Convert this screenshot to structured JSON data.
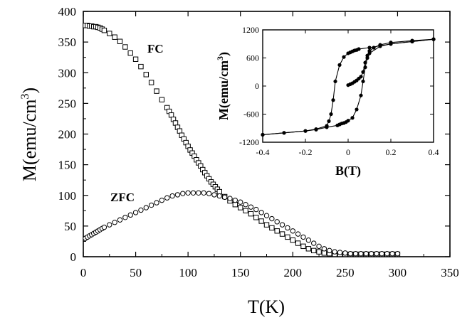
{
  "chart_data": [
    {
      "type": "scatter",
      "xlabel": "T(K)",
      "ylabel": "M(emu/cm³)",
      "xlim": [
        0,
        350
      ],
      "ylim": [
        0,
        400
      ],
      "x_ticks": [
        "0",
        "50",
        "100",
        "150",
        "200",
        "250",
        "300",
        "350"
      ],
      "y_ticks": [
        "0",
        "50",
        "100",
        "150",
        "200",
        "250",
        "300",
        "350",
        "400"
      ],
      "grid": false,
      "series": [
        {
          "name": "FC",
          "marker": "open-square",
          "x": [
            2,
            4,
            6,
            8,
            10,
            12,
            14,
            16,
            18,
            20,
            25,
            30,
            35,
            40,
            45,
            50,
            55,
            60,
            65,
            70,
            75,
            80,
            82,
            84,
            86,
            88,
            90,
            92,
            94,
            96,
            98,
            100,
            102,
            104,
            106,
            108,
            110,
            112,
            114,
            116,
            118,
            120,
            122,
            124,
            126,
            128,
            130,
            135,
            140,
            145,
            150,
            155,
            160,
            165,
            170,
            175,
            180,
            185,
            190,
            195,
            200,
            205,
            210,
            215,
            220,
            225,
            230,
            235,
            240,
            245,
            250,
            255,
            260,
            265,
            270,
            275,
            280,
            285,
            290,
            295,
            300
          ],
          "values": [
            377,
            377,
            376,
            376,
            375,
            375,
            374,
            373,
            371,
            369,
            364,
            358,
            351,
            342,
            332,
            322,
            310,
            297,
            284,
            270,
            256,
            243,
            237,
            231,
            224,
            218,
            211,
            205,
            198,
            192,
            186,
            180,
            174,
            169,
            164,
            158,
            153,
            148,
            142,
            137,
            132,
            127,
            122,
            118,
            114,
            110,
            106,
            98,
            91,
            85,
            80,
            75,
            70,
            64,
            58,
            52,
            47,
            42,
            37,
            32,
            27,
            22,
            17,
            13,
            10,
            8,
            6,
            5,
            4,
            4,
            4,
            4,
            4,
            4,
            4,
            4,
            4,
            4,
            4,
            4,
            4
          ]
        },
        {
          "name": "ZFC",
          "marker": "open-circle",
          "x": [
            2,
            4,
            6,
            8,
            10,
            12,
            14,
            16,
            18,
            20,
            25,
            30,
            35,
            40,
            45,
            50,
            55,
            60,
            65,
            70,
            75,
            80,
            85,
            90,
            95,
            100,
            105,
            110,
            115,
            120,
            125,
            130,
            135,
            140,
            145,
            150,
            155,
            160,
            165,
            170,
            175,
            180,
            185,
            190,
            195,
            200,
            205,
            210,
            215,
            220,
            225,
            230,
            235,
            240,
            245,
            250,
            255,
            260,
            265,
            270,
            275,
            280,
            285,
            290,
            295,
            300
          ],
          "values": [
            30,
            32,
            34,
            36,
            38,
            40,
            42,
            44,
            46,
            48,
            52,
            56,
            60,
            64,
            68,
            72,
            76,
            80,
            84,
            88,
            92,
            96,
            99,
            101,
            103,
            104,
            104,
            104,
            104,
            103,
            101,
            99,
            97,
            95,
            92,
            89,
            85,
            81,
            77,
            72,
            67,
            62,
            57,
            52,
            47,
            42,
            37,
            32,
            27,
            22,
            17,
            13,
            10,
            8,
            7,
            6,
            5,
            5,
            5,
            5,
            5,
            5,
            5,
            5,
            5,
            5
          ]
        }
      ]
    },
    {
      "type": "line",
      "inset": true,
      "xlabel": "B(T)",
      "ylabel": "M(emu/cm³)",
      "xlim": [
        -0.4,
        0.4
      ],
      "ylim": [
        -1200,
        1200
      ],
      "x_ticks": [
        "-0.4",
        "-0.2",
        "0",
        "0.2",
        "0.4"
      ],
      "y_ticks": [
        "1200",
        "600",
        "0",
        "-600",
        "-1200"
      ],
      "grid": false,
      "series": [
        {
          "name": "",
          "x": [
            0.0,
            0.01,
            0.02,
            0.03,
            0.04,
            0.05,
            0.06,
            0.07,
            0.08,
            0.09,
            0.1,
            0.12,
            0.15,
            0.2,
            0.3,
            0.4
          ],
          "values": [
            20,
            40,
            60,
            90,
            120,
            160,
            200,
            300,
            500,
            650,
            750,
            820,
            880,
            930,
            970,
            1000
          ]
        },
        {
          "name": "",
          "x": [
            0.4,
            0.3,
            0.2,
            0.15,
            0.1,
            0.05,
            0.04,
            0.03,
            0.02,
            0.01,
            0.0,
            -0.02,
            -0.04,
            -0.06,
            -0.07,
            -0.08,
            -0.09,
            -0.1,
            -0.15,
            -0.2,
            -0.3,
            -0.4
          ],
          "values": [
            1000,
            950,
            900,
            860,
            820,
            790,
            770,
            760,
            740,
            720,
            700,
            620,
            450,
            100,
            -300,
            -600,
            -750,
            -850,
            -920,
            -960,
            -1000,
            -1040
          ]
        },
        {
          "name": "",
          "x": [
            -0.4,
            -0.3,
            -0.2,
            -0.15,
            -0.1,
            -0.05,
            -0.04,
            -0.03,
            -0.02,
            -0.01,
            0.0,
            0.02,
            0.04,
            0.06,
            0.07,
            0.08,
            0.09,
            0.1,
            0.15,
            0.2,
            0.3,
            0.4
          ],
          "values": [
            -1040,
            -1000,
            -960,
            -930,
            -880,
            -840,
            -820,
            -800,
            -790,
            -770,
            -740,
            -680,
            -500,
            -200,
            100,
            400,
            600,
            700,
            850,
            900,
            950,
            1000
          ]
        }
      ]
    }
  ],
  "labels": {
    "fc": "FC",
    "zfc": "ZFC",
    "main_xlabel": "T(K)",
    "main_ylabel_base": "M(emu/cm",
    "main_ylabel_sup": "3",
    "main_ylabel_end": ")",
    "inset_xlabel": "B(T)",
    "inset_ylabel_base": "M(emu/cm",
    "inset_ylabel_sup": "3",
    "inset_ylabel_end": ")"
  }
}
